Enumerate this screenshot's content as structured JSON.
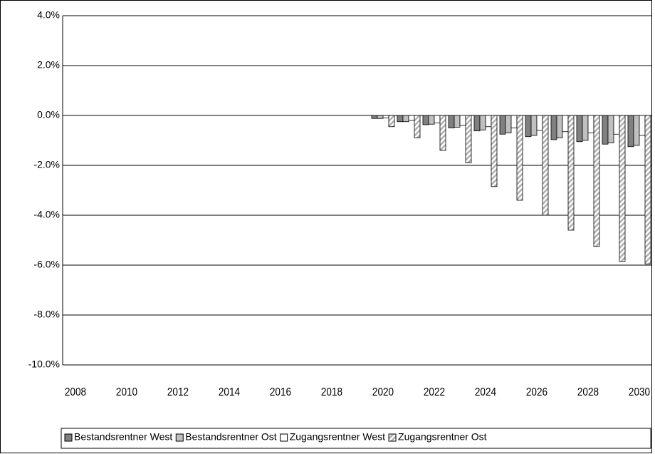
{
  "chart_data": {
    "type": "bar",
    "categories": [
      "2008",
      null,
      "2010",
      null,
      "2012",
      null,
      "2014",
      null,
      "2016",
      null,
      "2018",
      null,
      "2020",
      null,
      "2022",
      null,
      "2024",
      null,
      "2026",
      null,
      "2028",
      null,
      "2030"
    ],
    "series": [
      {
        "name": "Bestandsrentner West",
        "color": "#808080",
        "values": [
          0,
          0,
          0,
          0,
          0,
          0,
          0,
          0,
          0,
          0,
          0,
          0,
          -0.12,
          -0.25,
          -0.37,
          -0.5,
          -0.62,
          -0.75,
          -0.85,
          -0.97,
          -1.05,
          -1.15,
          -1.25
        ]
      },
      {
        "name": "Bestandsrentner Ost",
        "color": "#c0c0c0",
        "values": [
          0,
          0,
          0,
          0,
          0,
          0,
          0,
          0,
          0,
          0,
          0,
          0,
          -0.12,
          -0.25,
          -0.35,
          -0.47,
          -0.58,
          -0.7,
          -0.8,
          -0.9,
          -1.0,
          -1.1,
          -1.2
        ]
      },
      {
        "name": "Zugangsrentner West",
        "color": "#ffffff",
        "values": [
          0,
          0,
          0,
          0,
          0,
          0,
          0,
          0,
          0,
          0,
          0,
          0,
          -0.1,
          -0.2,
          -0.3,
          -0.4,
          -0.45,
          -0.5,
          -0.6,
          -0.65,
          -0.7,
          -0.75,
          -0.8
        ]
      },
      {
        "name": "Zugangsrentner Ost",
        "color": "#ffffff",
        "pattern": "hatch",
        "values": [
          0,
          0,
          0,
          0,
          0,
          0,
          0,
          0,
          0,
          0,
          0,
          0,
          -0.45,
          -0.9,
          -1.4,
          -1.9,
          -2.85,
          -3.4,
          -4.0,
          -4.6,
          -5.25,
          -5.85,
          -5.95
        ]
      }
    ],
    "ylim": [
      -10,
      4
    ],
    "yticks": [
      {
        "value": -10,
        "label": "-10.0%"
      },
      {
        "value": -8,
        "label": "-8.0%"
      },
      {
        "value": -6,
        "label": "-6.0%"
      },
      {
        "value": -4,
        "label": "-4.0%"
      },
      {
        "value": -2,
        "label": "-2.0%"
      },
      {
        "value": 0,
        "label": "0.0%"
      },
      {
        "value": 2,
        "label": "2.0%"
      },
      {
        "value": 4,
        "label": "4.0%"
      }
    ],
    "grid": true,
    "legend": "bottom"
  }
}
